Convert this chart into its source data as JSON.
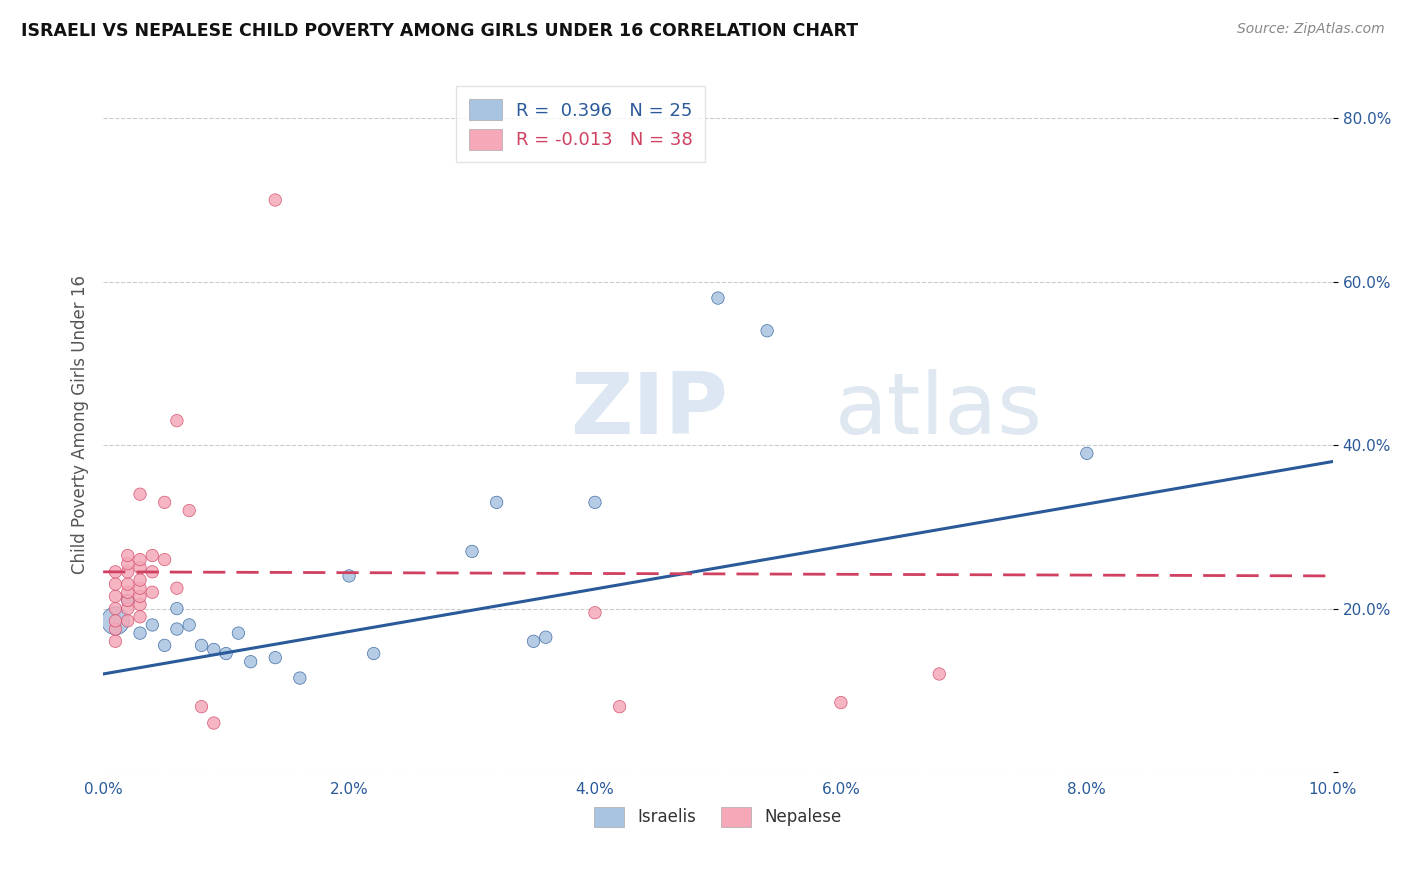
{
  "title": "ISRAELI VS NEPALESE CHILD POVERTY AMONG GIRLS UNDER 16 CORRELATION CHART",
  "source": "Source: ZipAtlas.com",
  "xlabel": "",
  "ylabel": "Child Poverty Among Girls Under 16",
  "watermark_zip": "ZIP",
  "watermark_atlas": "atlas",
  "xlim": [
    0.0,
    0.1
  ],
  "ylim": [
    0.0,
    0.85
  ],
  "xticks": [
    0.0,
    0.02,
    0.04,
    0.06,
    0.08,
    0.1
  ],
  "xtick_labels": [
    "0.0%",
    "2.0%",
    "4.0%",
    "6.0%",
    "8.0%",
    "10.0%"
  ],
  "yticks": [
    0.0,
    0.2,
    0.4,
    0.6,
    0.8
  ],
  "ytick_labels": [
    "",
    "20.0%",
    "40.0%",
    "60.0%",
    "80.0%"
  ],
  "legend_r_israeli": "0.396",
  "legend_n_israeli": "25",
  "legend_r_nepalese": "-0.013",
  "legend_n_nepalese": "38",
  "israeli_color": "#a8c4e0",
  "nepalese_color": "#f4a8b8",
  "line_israeli_color": "#2a5a9a",
  "line_nepalese_color": "#d04060",
  "israeli_x": [
    0.001,
    0.002,
    0.003,
    0.004,
    0.005,
    0.006,
    0.006,
    0.007,
    0.008,
    0.009,
    0.01,
    0.011,
    0.012,
    0.014,
    0.016,
    0.02,
    0.022,
    0.03,
    0.032,
    0.035,
    0.036,
    0.04,
    0.05,
    0.054,
    0.08
  ],
  "israeli_y": [
    0.185,
    0.21,
    0.17,
    0.18,
    0.155,
    0.2,
    0.175,
    0.18,
    0.155,
    0.15,
    0.145,
    0.17,
    0.135,
    0.14,
    0.115,
    0.24,
    0.145,
    0.27,
    0.33,
    0.16,
    0.165,
    0.33,
    0.58,
    0.54,
    0.39
  ],
  "israeli_sizes": [
    400,
    80,
    80,
    80,
    80,
    80,
    80,
    80,
    80,
    80,
    80,
    80,
    80,
    80,
    80,
    80,
    80,
    80,
    80,
    80,
    80,
    80,
    80,
    80,
    80
  ],
  "nepalese_x": [
    0.001,
    0.001,
    0.001,
    0.001,
    0.001,
    0.001,
    0.001,
    0.002,
    0.002,
    0.002,
    0.002,
    0.002,
    0.002,
    0.002,
    0.002,
    0.003,
    0.003,
    0.003,
    0.003,
    0.003,
    0.003,
    0.003,
    0.003,
    0.004,
    0.004,
    0.004,
    0.005,
    0.005,
    0.006,
    0.006,
    0.007,
    0.008,
    0.009,
    0.014,
    0.04,
    0.042,
    0.06,
    0.068
  ],
  "nepalese_y": [
    0.16,
    0.175,
    0.185,
    0.2,
    0.215,
    0.23,
    0.245,
    0.185,
    0.2,
    0.21,
    0.22,
    0.23,
    0.245,
    0.255,
    0.265,
    0.19,
    0.205,
    0.215,
    0.225,
    0.235,
    0.25,
    0.26,
    0.34,
    0.22,
    0.245,
    0.265,
    0.26,
    0.33,
    0.225,
    0.43,
    0.32,
    0.08,
    0.06,
    0.7,
    0.195,
    0.08,
    0.085,
    0.12
  ],
  "nepalese_sizes": [
    80,
    80,
    80,
    80,
    80,
    80,
    80,
    80,
    80,
    80,
    80,
    80,
    80,
    80,
    80,
    80,
    80,
    80,
    80,
    80,
    80,
    80,
    80,
    80,
    80,
    80,
    80,
    80,
    80,
    80,
    80,
    80,
    80,
    80,
    80,
    80,
    80,
    80
  ]
}
